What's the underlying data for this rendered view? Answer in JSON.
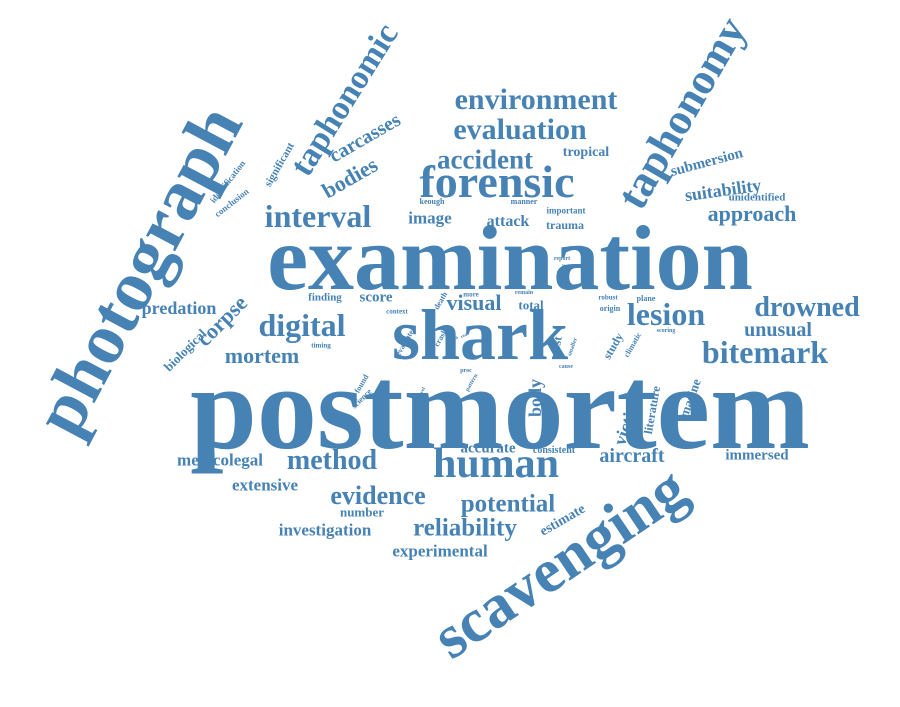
{
  "words": {
    "postmortem": "postmortem",
    "examination": "examination",
    "shark": "shark",
    "photograph": "photograph",
    "scavenging": "scavenging",
    "taphonomy": "taphonomy",
    "forensic": "forensic",
    "human": "human",
    "taphonomic": "taphonomic",
    "environment": "environment",
    "evaluation": "evaluation",
    "accident": "accident",
    "interval": "interval",
    "digital": "digital",
    "lesion": "lesion",
    "drowned": "drowned",
    "bitemark": "bitemark",
    "method": "method",
    "evidence": "evidence",
    "potential": "potential",
    "reliability": "reliability",
    "approach": "approach",
    "suitability": "suitability",
    "visual": "visual",
    "mortem": "mortem",
    "corpse": "corpse",
    "predation": "predation",
    "unusual": "unusual",
    "aircraft": "aircraft",
    "immersed": "immersed",
    "medicolegal": "medicolegal",
    "accurate": "accurate",
    "consistent": "consistent",
    "extensive": "extensive",
    "investigation": "investigation",
    "experimental": "experimental",
    "number": "number",
    "estimate": "estimate",
    "body": "body",
    "victim": "victim",
    "literature": "literature",
    "marine": "marine",
    "submersion": "submersion",
    "unidentified": "unidentified",
    "tropical": "tropical",
    "carcasses": "carcasses",
    "bodies": "bodies",
    "image": "image",
    "attack": "attack",
    "trauma": "trauma",
    "keough": "keough",
    "manner": "manner",
    "important": "important",
    "significant": "significant",
    "identification": "identification",
    "conclusion": "conclusion",
    "finding": "finding",
    "score": "score",
    "total": "total",
    "context": "context",
    "death": "death",
    "more": "more",
    "remain": "remain",
    "robust": "robust",
    "origin": "origin",
    "plane": "plane",
    "report": "report",
    "work": "work",
    "biological": "biological",
    "timing": "timing",
    "evaluate": "evaluate",
    "crash": "crash",
    "area": "area",
    "real": "real",
    "time": "time",
    "found": "found",
    "science": "science",
    "novel": "novel",
    "pattern": "pattern",
    "proc": "proc",
    "post": "post",
    "smaller": "smaller",
    "cause": "cause",
    "study": "study",
    "climatic": "climatic",
    "scoring": "scoring"
  }
}
